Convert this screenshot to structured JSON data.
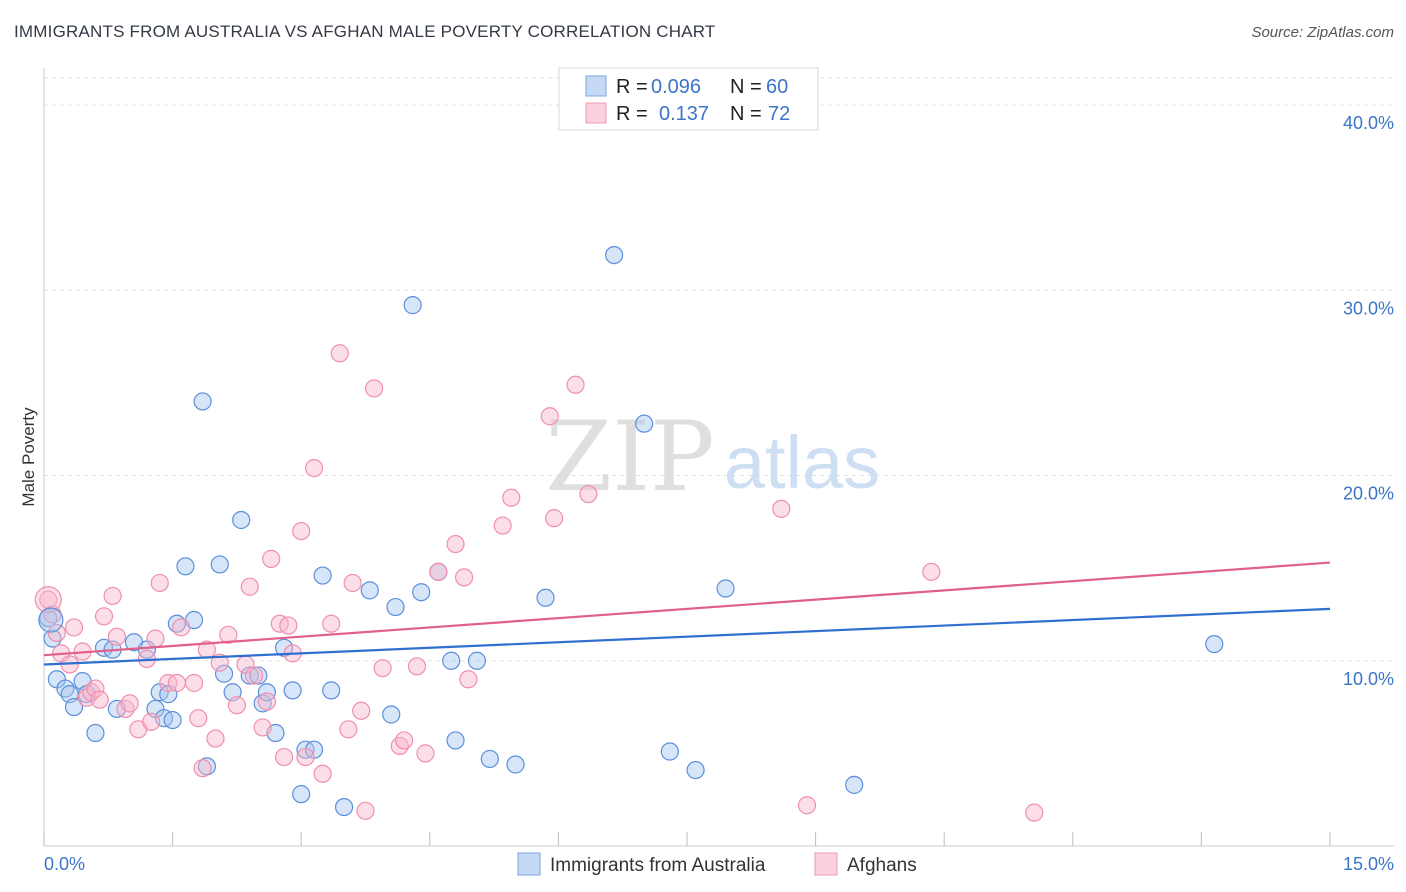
{
  "header": {
    "title": "IMMIGRANTS FROM AUSTRALIA VS AFGHAN MALE POVERTY CORRELATION CHART",
    "source": "Source: ZipAtlas.com"
  },
  "watermark": {
    "zip": "ZIP",
    "atlas": "atlas"
  },
  "chart_data": {
    "type": "scatter",
    "title": "IMMIGRANTS FROM AUSTRALIA VS AFGHAN MALE POVERTY CORRELATION CHART",
    "xlabel": "",
    "ylabel": "Male Poverty",
    "xlim": [
      0,
      15
    ],
    "ylim": [
      0,
      42
    ],
    "x_tick_labels": [
      "0.0%",
      "15.0%"
    ],
    "y_ticks": [
      10,
      20,
      30,
      40
    ],
    "y_tick_labels": [
      "10.0%",
      "20.0%",
      "30.0%",
      "40.0%"
    ],
    "grid": true,
    "legend_position": "top-center",
    "legend": [
      {
        "r_label": "R = ",
        "r_value": "0.096",
        "n_label": "N = ",
        "n_value": "60"
      },
      {
        "r_label": "R = ",
        "r_value": "0.137",
        "n_label": "N = ",
        "n_value": "72"
      }
    ],
    "series": [
      {
        "name": "Immigrants from Australia",
        "color": "#5b8fdb",
        "trend_color": "#2f6fd0",
        "trend": {
          "x0": 0,
          "y0": 9.8,
          "x1": 15,
          "y1": 12.8
        },
        "points": [
          [
            0.05,
            12.3
          ],
          [
            0.1,
            11.2
          ],
          [
            0.15,
            9.0
          ],
          [
            0.25,
            8.5
          ],
          [
            0.3,
            8.2
          ],
          [
            0.35,
            7.5
          ],
          [
            0.45,
            8.9
          ],
          [
            0.5,
            8.2
          ],
          [
            0.6,
            6.1
          ],
          [
            0.7,
            10.7
          ],
          [
            0.8,
            10.6
          ],
          [
            0.85,
            7.4
          ],
          [
            1.05,
            11.0
          ],
          [
            1.2,
            10.6
          ],
          [
            1.3,
            7.4
          ],
          [
            1.35,
            8.3
          ],
          [
            1.4,
            6.9
          ],
          [
            1.45,
            8.2
          ],
          [
            1.5,
            6.8
          ],
          [
            1.55,
            12.0
          ],
          [
            1.65,
            15.1
          ],
          [
            1.75,
            12.2
          ],
          [
            1.85,
            24.0
          ],
          [
            1.9,
            4.3
          ],
          [
            2.05,
            15.2
          ],
          [
            2.1,
            9.3
          ],
          [
            2.2,
            8.3
          ],
          [
            2.3,
            17.6
          ],
          [
            2.4,
            9.2
          ],
          [
            2.5,
            9.2
          ],
          [
            2.55,
            7.7
          ],
          [
            2.6,
            8.3
          ],
          [
            2.7,
            6.1
          ],
          [
            2.8,
            10.7
          ],
          [
            2.9,
            8.4
          ],
          [
            3.0,
            2.8
          ],
          [
            3.05,
            5.2
          ],
          [
            3.15,
            5.2
          ],
          [
            3.25,
            14.6
          ],
          [
            3.35,
            8.4
          ],
          [
            3.5,
            2.1
          ],
          [
            3.8,
            13.8
          ],
          [
            4.05,
            7.1
          ],
          [
            4.1,
            12.9
          ],
          [
            4.3,
            29.2
          ],
          [
            4.4,
            13.7
          ],
          [
            4.6,
            14.8
          ],
          [
            4.75,
            10.0
          ],
          [
            4.8,
            5.7
          ],
          [
            5.05,
            10.0
          ],
          [
            5.2,
            4.7
          ],
          [
            5.5,
            4.4
          ],
          [
            5.85,
            13.4
          ],
          [
            6.65,
            31.9
          ],
          [
            7.0,
            22.8
          ],
          [
            7.3,
            5.1
          ],
          [
            7.6,
            4.1
          ],
          [
            7.95,
            13.9
          ],
          [
            9.45,
            3.3
          ],
          [
            13.65,
            10.9
          ]
        ]
      },
      {
        "name": "Afghans",
        "color": "#f08fae",
        "trend_color": "#e0608a",
        "trend": {
          "x0": 0,
          "y0": 10.3,
          "x1": 15,
          "y1": 15.3
        },
        "points": [
          [
            0.05,
            13.3
          ],
          [
            0.1,
            12.5
          ],
          [
            0.15,
            11.5
          ],
          [
            0.2,
            10.4
          ],
          [
            0.3,
            9.8
          ],
          [
            0.35,
            11.8
          ],
          [
            0.45,
            10.5
          ],
          [
            0.5,
            8.0
          ],
          [
            0.55,
            8.3
          ],
          [
            0.6,
            8.5
          ],
          [
            0.65,
            7.9
          ],
          [
            0.7,
            12.4
          ],
          [
            0.8,
            13.5
          ],
          [
            0.85,
            11.3
          ],
          [
            0.95,
            7.4
          ],
          [
            1.0,
            7.7
          ],
          [
            1.1,
            6.3
          ],
          [
            1.2,
            10.1
          ],
          [
            1.25,
            6.7
          ],
          [
            1.35,
            14.2
          ],
          [
            1.45,
            8.8
          ],
          [
            1.55,
            8.8
          ],
          [
            1.6,
            11.8
          ],
          [
            1.75,
            8.8
          ],
          [
            1.8,
            6.9
          ],
          [
            1.85,
            4.2
          ],
          [
            1.9,
            10.6
          ],
          [
            2.0,
            5.8
          ],
          [
            2.05,
            9.9
          ],
          [
            2.15,
            11.4
          ],
          [
            2.25,
            7.6
          ],
          [
            2.35,
            9.8
          ],
          [
            2.4,
            14.0
          ],
          [
            2.45,
            9.2
          ],
          [
            2.55,
            6.4
          ],
          [
            2.6,
            7.8
          ],
          [
            2.65,
            15.5
          ],
          [
            2.75,
            12.0
          ],
          [
            2.85,
            11.9
          ],
          [
            2.9,
            10.4
          ],
          [
            3.0,
            17.0
          ],
          [
            3.05,
            4.8
          ],
          [
            3.15,
            20.4
          ],
          [
            3.25,
            3.9
          ],
          [
            3.35,
            12.0
          ],
          [
            3.45,
            26.6
          ],
          [
            3.55,
            6.3
          ],
          [
            3.6,
            14.2
          ],
          [
            3.7,
            7.3
          ],
          [
            3.75,
            1.9
          ],
          [
            3.85,
            24.7
          ],
          [
            3.95,
            9.6
          ],
          [
            4.15,
            5.4
          ],
          [
            4.2,
            5.7
          ],
          [
            4.35,
            9.7
          ],
          [
            4.45,
            5.0
          ],
          [
            4.6,
            14.8
          ],
          [
            4.8,
            16.3
          ],
          [
            4.9,
            14.5
          ],
          [
            4.95,
            9.0
          ],
          [
            5.35,
            17.3
          ],
          [
            5.45,
            18.8
          ],
          [
            5.9,
            23.2
          ],
          [
            5.95,
            17.7
          ],
          [
            6.2,
            24.9
          ],
          [
            6.35,
            19.0
          ],
          [
            8.6,
            18.2
          ],
          [
            8.9,
            2.2
          ],
          [
            10.35,
            14.8
          ],
          [
            11.55,
            1.8
          ],
          [
            1.3,
            11.2
          ],
          [
            2.8,
            4.8
          ]
        ]
      }
    ]
  }
}
